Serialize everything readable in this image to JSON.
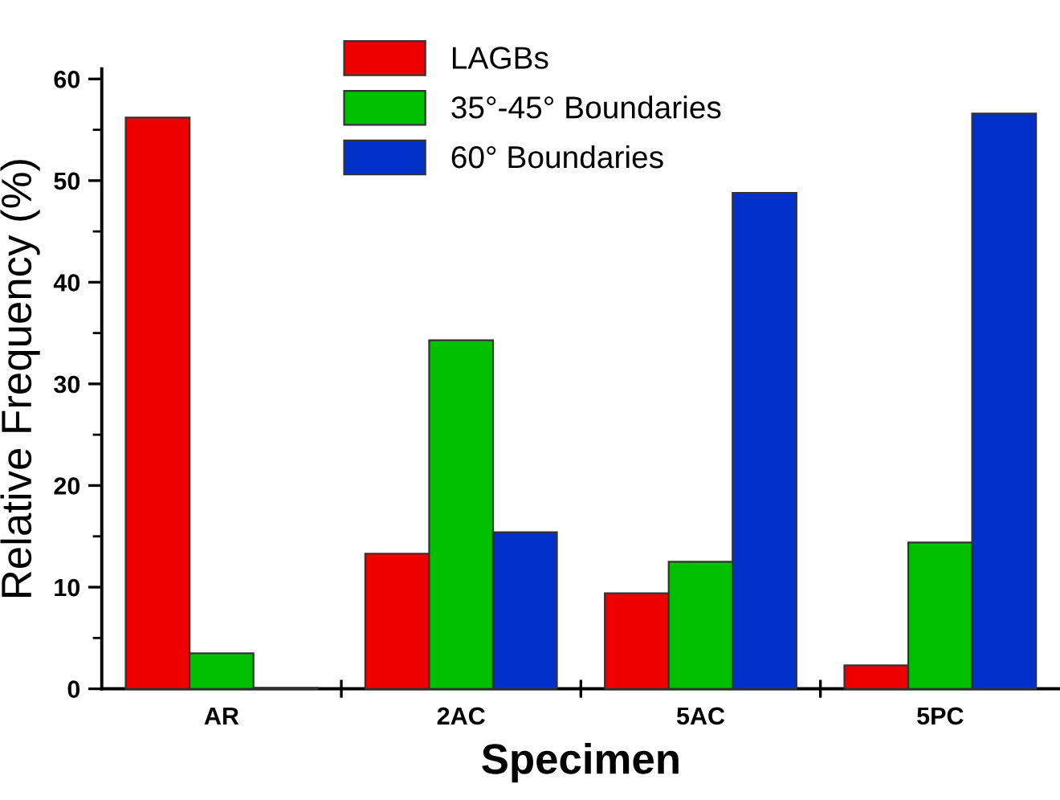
{
  "chart_data": {
    "type": "bar",
    "xlabel": "Specimen",
    "ylabel": "Relative Frequency (%)",
    "categories": [
      "AR",
      "2AC",
      "5AC",
      "5PC"
    ],
    "series": [
      {
        "name": "LAGBs",
        "color": "#ee0000",
        "values": [
          56.2,
          13.3,
          9.4,
          2.3
        ]
      },
      {
        "name": "35°-45° Boundaries",
        "color": "#00c000",
        "values": [
          3.5,
          34.3,
          12.5,
          14.4
        ]
      },
      {
        "name": "60° Boundaries",
        "color": "#0030c8",
        "values": [
          0.1,
          15.4,
          48.8,
          56.6
        ]
      }
    ],
    "ylim": [
      0,
      61
    ],
    "yticks": [
      0,
      10,
      20,
      30,
      40,
      50,
      60
    ],
    "grid": false,
    "legend": "top"
  }
}
